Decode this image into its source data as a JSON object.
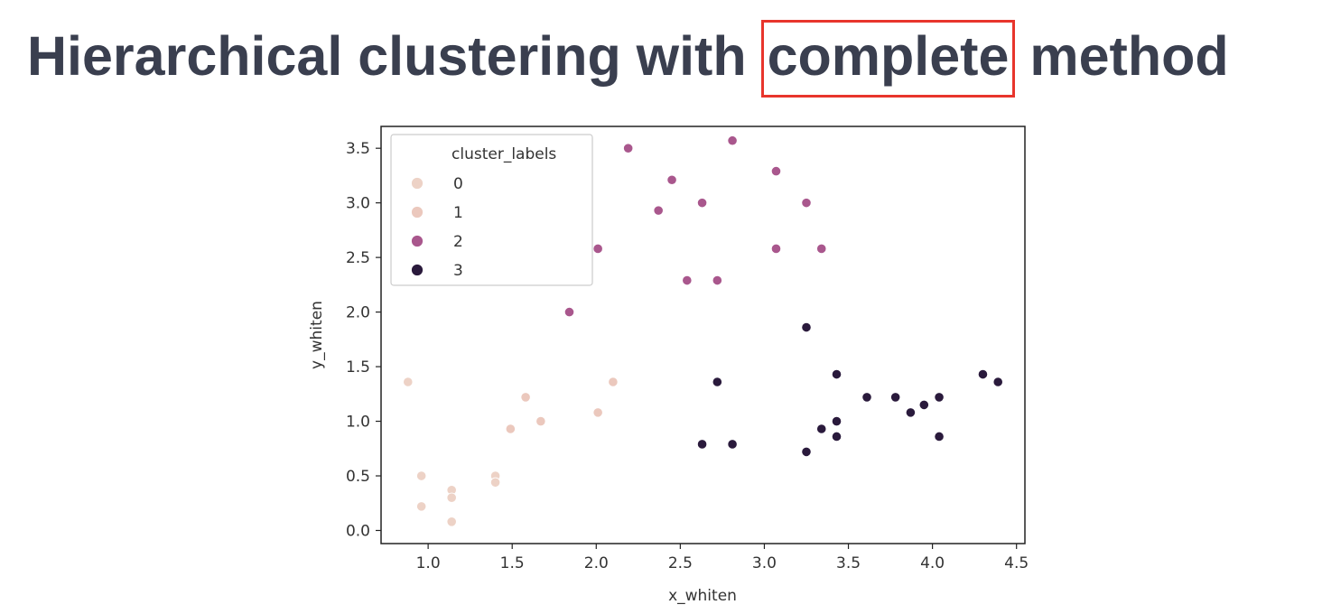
{
  "title": {
    "before": "Hierarchical clustering with ",
    "highlight": "complete",
    "after": " method"
  },
  "colors": {
    "highlight_border": "#e8352c",
    "title_text": "#3a3f4f"
  },
  "chart_data": {
    "type": "scatter",
    "xlabel": "x_whiten",
    "ylabel": "y_whiten",
    "xlim": [
      0.72,
      4.55
    ],
    "ylim": [
      -0.12,
      3.7
    ],
    "xticks": [
      "1.0",
      "1.5",
      "2.0",
      "2.5",
      "3.0",
      "3.5",
      "4.0",
      "4.5"
    ],
    "yticks": [
      "0.0",
      "0.5",
      "1.0",
      "1.5",
      "2.0",
      "2.5",
      "3.0",
      "3.5"
    ],
    "grid": false,
    "legend": {
      "title": "cluster_labels",
      "placement": "top-left",
      "entries": [
        "0",
        "1",
        "2",
        "3"
      ]
    },
    "series": [
      {
        "name": "0",
        "color": "#edd2c6",
        "points": [
          [
            0.88,
            1.36
          ],
          [
            0.96,
            0.5
          ],
          [
            0.96,
            0.22
          ],
          [
            1.14,
            0.37
          ],
          [
            1.14,
            0.3
          ],
          [
            1.14,
            0.08
          ],
          [
            1.4,
            0.5
          ],
          [
            1.4,
            0.44
          ]
        ]
      },
      {
        "name": "1",
        "color": "#ebc8bd",
        "points": [
          [
            1.49,
            0.93
          ],
          [
            1.58,
            1.22
          ],
          [
            1.67,
            1.0
          ],
          [
            2.01,
            1.08
          ],
          [
            2.1,
            1.36
          ]
        ]
      },
      {
        "name": "2",
        "color": "#a9578d",
        "points": [
          [
            1.84,
            2.0
          ],
          [
            2.01,
            2.58
          ],
          [
            2.19,
            3.5
          ],
          [
            2.37,
            2.93
          ],
          [
            2.45,
            3.21
          ],
          [
            2.54,
            2.29
          ],
          [
            2.63,
            3.0
          ],
          [
            2.72,
            2.29
          ],
          [
            2.81,
            3.57
          ],
          [
            3.07,
            3.29
          ],
          [
            3.07,
            2.58
          ],
          [
            3.25,
            3.0
          ],
          [
            3.34,
            2.58
          ]
        ]
      },
      {
        "name": "3",
        "color": "#2a1a3c",
        "points": [
          [
            2.63,
            0.79
          ],
          [
            2.72,
            1.36
          ],
          [
            2.81,
            0.79
          ],
          [
            3.25,
            1.86
          ],
          [
            3.25,
            0.72
          ],
          [
            3.34,
            0.93
          ],
          [
            3.43,
            1.43
          ],
          [
            3.43,
            1.0
          ],
          [
            3.43,
            0.86
          ],
          [
            3.61,
            1.22
          ],
          [
            3.78,
            1.22
          ],
          [
            3.87,
            1.08
          ],
          [
            3.95,
            1.15
          ],
          [
            4.04,
            1.22
          ],
          [
            4.04,
            0.86
          ],
          [
            4.3,
            1.43
          ],
          [
            4.39,
            1.36
          ]
        ]
      }
    ]
  }
}
